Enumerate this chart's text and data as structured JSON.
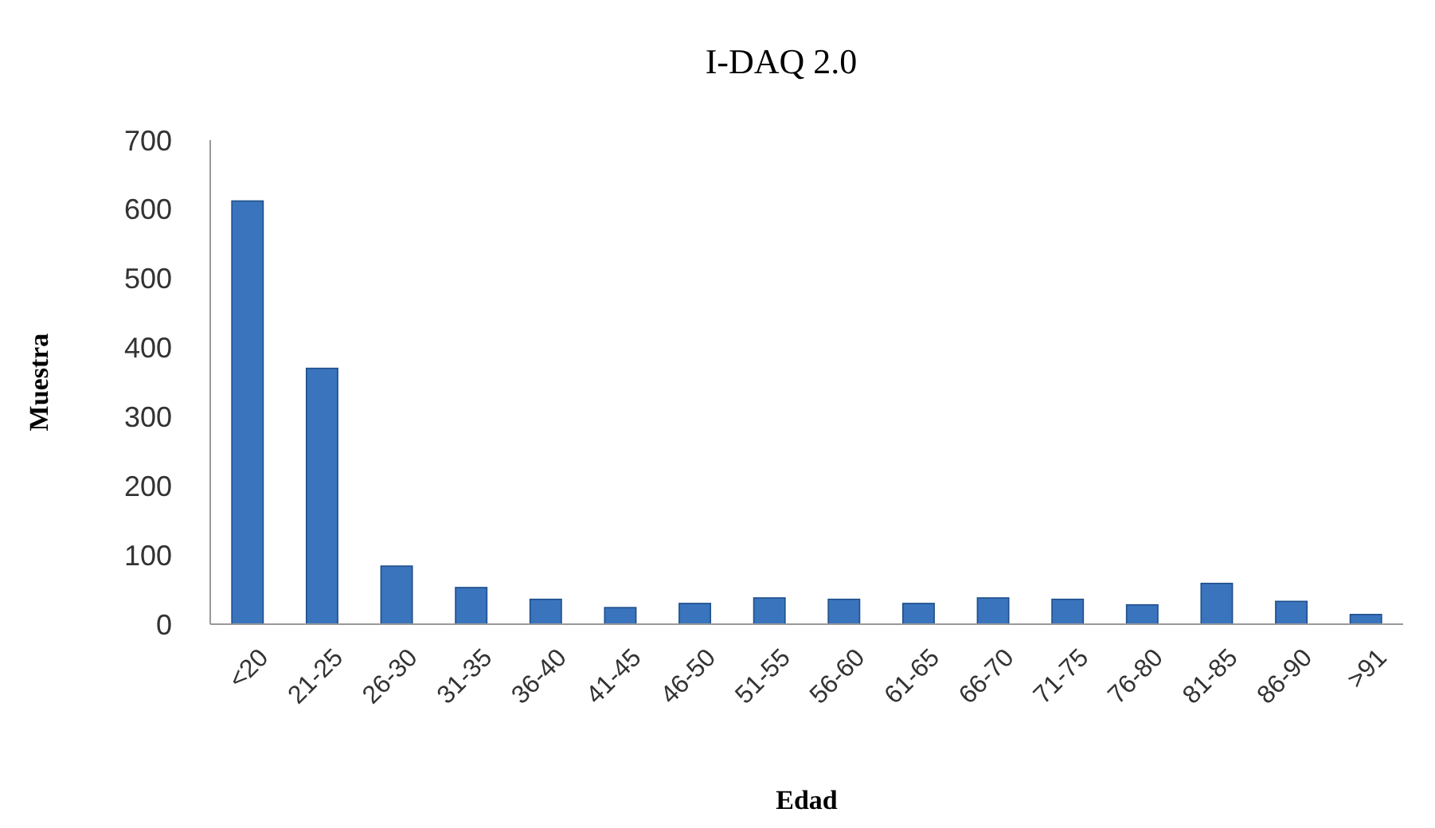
{
  "chart_data": {
    "type": "bar",
    "title": "I-DAQ 2.0",
    "xlabel": "Edad",
    "ylabel": "Muestra",
    "categories": [
      "<20",
      "21-25",
      "26-30",
      "31-35",
      "36-40",
      "41-45",
      "46-50",
      "51-55",
      "56-60",
      "61-65",
      "66-70",
      "71-75",
      "76-80",
      "81-85",
      "86-90",
      ">91"
    ],
    "values": [
      612,
      370,
      84,
      53,
      36,
      24,
      30,
      38,
      36,
      30,
      38,
      36,
      28,
      59,
      33,
      14
    ],
    "color": "#3a74bd",
    "ylim": [
      0,
      700
    ],
    "yticks": [
      0,
      100,
      200,
      300,
      400,
      500,
      600,
      700
    ],
    "grid": false
  }
}
